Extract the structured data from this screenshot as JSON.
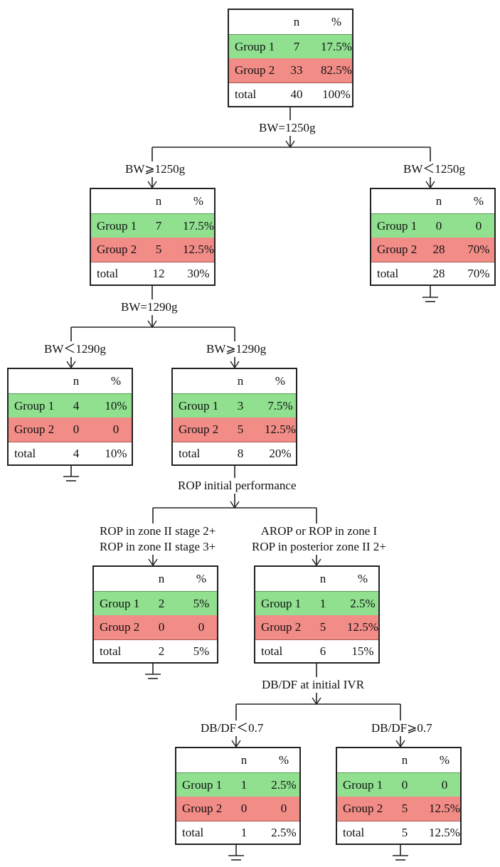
{
  "header": {
    "n": "n",
    "pct": "%"
  },
  "row_labels": {
    "g1": "Group 1",
    "g2": "Group 2",
    "total": "total"
  },
  "nodes": {
    "root": {
      "g1_n": "7",
      "g1_pct": "17.5%",
      "g2_n": "33",
      "g2_pct": "82.5%",
      "total_n": "40",
      "total_pct": "100%"
    },
    "bw_ge1250": {
      "g1_n": "7",
      "g1_pct": "17.5%",
      "g2_n": "5",
      "g2_pct": "12.5%",
      "total_n": "12",
      "total_pct": "30%"
    },
    "bw_lt1250": {
      "g1_n": "0",
      "g1_pct": "0",
      "g2_n": "28",
      "g2_pct": "70%",
      "total_n": "28",
      "total_pct": "70%"
    },
    "bw_lt1290": {
      "g1_n": "4",
      "g1_pct": "10%",
      "g2_n": "0",
      "g2_pct": "0",
      "total_n": "4",
      "total_pct": "10%"
    },
    "bw_ge1290": {
      "g1_n": "3",
      "g1_pct": "7.5%",
      "g2_n": "5",
      "g2_pct": "12.5%",
      "total_n": "8",
      "total_pct": "20%"
    },
    "rop_zone2": {
      "g1_n": "2",
      "g1_pct": "5%",
      "g2_n": "0",
      "g2_pct": "0",
      "total_n": "2",
      "total_pct": "5%"
    },
    "arop_zone1": {
      "g1_n": "1",
      "g1_pct": "2.5%",
      "g2_n": "5",
      "g2_pct": "12.5%",
      "total_n": "6",
      "total_pct": "15%"
    },
    "dbdf_lt07": {
      "g1_n": "1",
      "g1_pct": "2.5%",
      "g2_n": "0",
      "g2_pct": "0",
      "total_n": "1",
      "total_pct": "2.5%"
    },
    "dbdf_ge07": {
      "g1_n": "0",
      "g1_pct": "0",
      "g2_n": "5",
      "g2_pct": "12.5%",
      "total_n": "5",
      "total_pct": "12.5%"
    }
  },
  "splits": {
    "bw1250": "BW=1250g",
    "bw1290": "BW=1290g",
    "rop_initial": "ROP initial performance",
    "dbdf_initial": "DB/DF at initial IVR"
  },
  "branches": {
    "bw_ge1250": "BW⩾1250g",
    "bw_lt1250": "BW＜1250g",
    "bw_lt1290": "BW＜1290g",
    "bw_ge1290": "BW⩾1290g",
    "rop_zone2_line1": "ROP in zone II stage 2+",
    "rop_zone2_line2": "ROP in zone II stage 3+",
    "arop_line1": "AROP or ROP in zone I",
    "arop_line2": "ROP in posterior zone II 2+",
    "dbdf_lt07": "DB/DF＜0.7",
    "dbdf_ge07": "DB/DF⩾0.7"
  },
  "colors": {
    "group1": "#90e090",
    "group2": "#f28c87",
    "line": "#222222"
  }
}
